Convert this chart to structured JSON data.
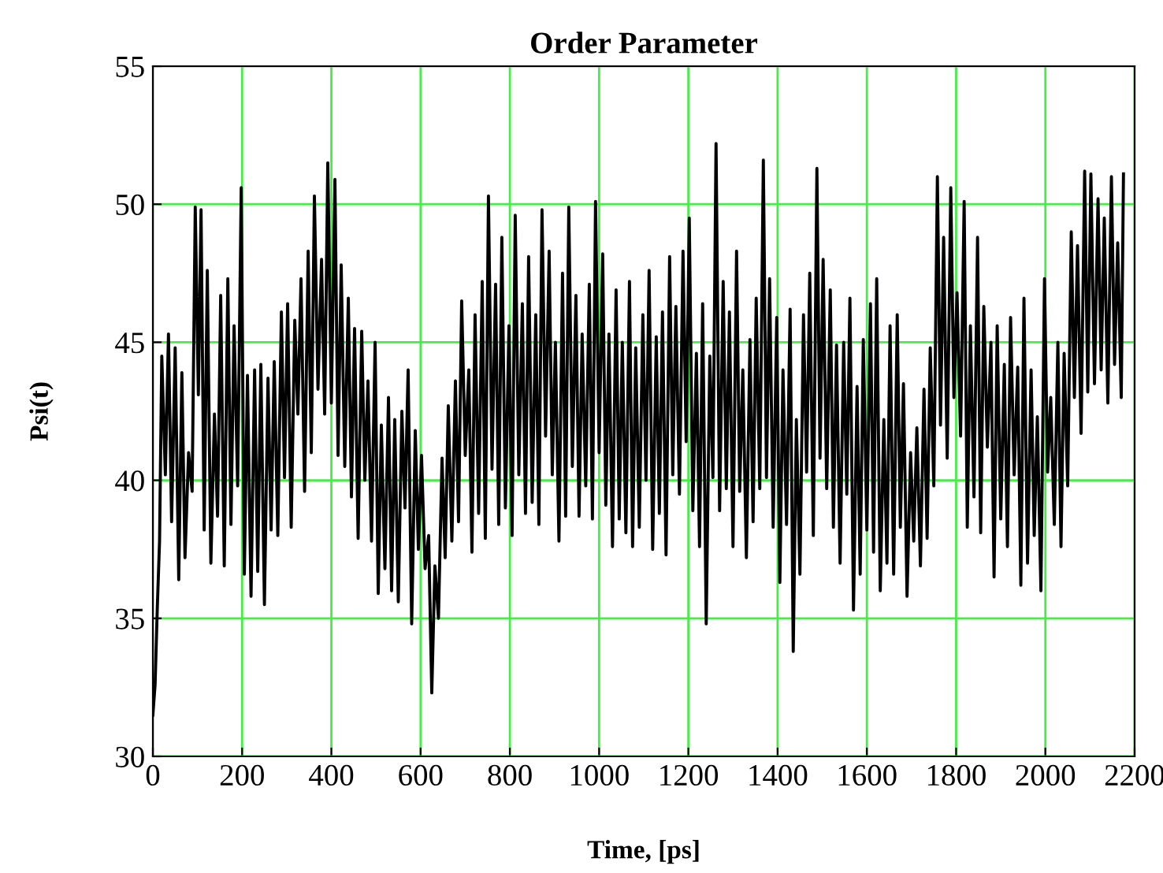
{
  "chart_data": {
    "type": "line",
    "title": "Order Parameter",
    "xlabel": "Time, [ps]",
    "ylabel": "Psi(t)",
    "x": [
      0,
      5,
      10,
      15,
      20,
      28,
      35,
      42,
      50,
      58,
      65,
      72,
      80,
      88,
      95,
      102,
      108,
      115,
      122,
      130,
      138,
      145,
      152,
      160,
      168,
      175,
      182,
      190,
      198,
      205,
      212,
      220,
      228,
      235,
      242,
      250,
      258,
      265,
      272,
      280,
      288,
      295,
      302,
      310,
      318,
      325,
      332,
      340,
      348,
      355,
      362,
      370,
      378,
      385,
      392,
      400,
      408,
      415,
      422,
      430,
      438,
      445,
      452,
      460,
      468,
      475,
      482,
      490,
      498,
      505,
      512,
      520,
      528,
      535,
      542,
      550,
      558,
      565,
      572,
      580,
      588,
      595,
      602,
      610,
      618,
      625,
      632,
      640,
      648,
      655,
      662,
      670,
      678,
      685,
      692,
      700,
      708,
      715,
      722,
      730,
      738,
      745,
      752,
      760,
      768,
      775,
      782,
      790,
      798,
      805,
      812,
      820,
      828,
      835,
      842,
      850,
      858,
      865,
      872,
      880,
      888,
      895,
      902,
      910,
      918,
      925,
      932,
      940,
      948,
      955,
      962,
      970,
      978,
      985,
      992,
      1000,
      1008,
      1015,
      1022,
      1030,
      1038,
      1045,
      1052,
      1060,
      1068,
      1075,
      1082,
      1090,
      1098,
      1105,
      1112,
      1120,
      1128,
      1135,
      1142,
      1150,
      1158,
      1165,
      1172,
      1180,
      1188,
      1195,
      1202,
      1210,
      1218,
      1225,
      1232,
      1240,
      1248,
      1255,
      1262,
      1270,
      1278,
      1285,
      1292,
      1300,
      1308,
      1315,
      1322,
      1330,
      1338,
      1345,
      1352,
      1360,
      1368,
      1375,
      1382,
      1390,
      1398,
      1405,
      1412,
      1420,
      1428,
      1435,
      1442,
      1450,
      1458,
      1465,
      1472,
      1480,
      1488,
      1495,
      1502,
      1510,
      1518,
      1525,
      1532,
      1540,
      1548,
      1555,
      1562,
      1570,
      1578,
      1585,
      1592,
      1600,
      1608,
      1615,
      1622,
      1630,
      1638,
      1645,
      1652,
      1660,
      1668,
      1675,
      1682,
      1690,
      1698,
      1705,
      1712,
      1720,
      1728,
      1735,
      1742,
      1750,
      1758,
      1765,
      1772,
      1780,
      1788,
      1795,
      1802,
      1810,
      1818,
      1825,
      1832,
      1840,
      1848,
      1855,
      1862,
      1870,
      1878,
      1885,
      1892,
      1900,
      1908,
      1915,
      1922,
      1930,
      1938,
      1945,
      1952,
      1960,
      1968,
      1975,
      1982,
      1990,
      1998,
      2005,
      2012,
      2020,
      2028,
      2035,
      2042,
      2050,
      2058,
      2065,
      2072,
      2080,
      2088,
      2095,
      2102,
      2110,
      2118,
      2125,
      2132,
      2140,
      2148,
      2155,
      2162,
      2170,
      2175
    ],
    "values": [
      31.5,
      32.6,
      35.4,
      37.8,
      44.5,
      40.2,
      45.3,
      38.5,
      44.8,
      36.4,
      43.9,
      37.2,
      41.0,
      39.6,
      49.9,
      43.1,
      49.8,
      38.2,
      47.6,
      37.0,
      42.4,
      38.7,
      46.7,
      36.9,
      47.3,
      38.4,
      45.6,
      39.8,
      50.6,
      36.6,
      43.8,
      35.8,
      44.0,
      36.7,
      44.2,
      35.5,
      43.7,
      38.2,
      44.3,
      38.0,
      46.1,
      40.1,
      46.4,
      38.3,
      45.8,
      42.4,
      47.3,
      39.6,
      48.3,
      41.0,
      50.3,
      43.3,
      48.0,
      42.4,
      51.5,
      42.8,
      50.9,
      40.9,
      47.8,
      40.5,
      46.6,
      39.4,
      45.5,
      37.9,
      45.4,
      40.0,
      43.6,
      37.8,
      45.0,
      35.9,
      42.0,
      36.8,
      43.0,
      36.0,
      42.2,
      35.6,
      42.5,
      39.0,
      44.0,
      34.8,
      41.8,
      37.5,
      40.9,
      36.8,
      38.0,
      32.3,
      36.9,
      35.0,
      40.8,
      37.2,
      42.7,
      37.8,
      43.6,
      38.5,
      46.5,
      40.9,
      44.0,
      37.4,
      46.0,
      38.8,
      47.2,
      37.9,
      50.3,
      40.4,
      47.1,
      38.4,
      48.8,
      39.0,
      45.6,
      38.0,
      49.6,
      40.2,
      46.4,
      38.8,
      48.1,
      39.2,
      46.0,
      38.4,
      49.8,
      41.6,
      48.3,
      40.2,
      45.0,
      37.8,
      47.5,
      38.7,
      49.9,
      40.5,
      46.7,
      38.7,
      45.3,
      39.8,
      47.1,
      38.6,
      50.1,
      41.0,
      48.2,
      39.1,
      45.3,
      37.6,
      46.9,
      38.6,
      45.0,
      38.1,
      47.2,
      37.6,
      44.8,
      38.3,
      46.0,
      40.0,
      47.6,
      37.5,
      45.2,
      38.8,
      46.1,
      37.3,
      48.1,
      40.2,
      46.3,
      39.5,
      48.3,
      41.4,
      49.5,
      38.9,
      44.6,
      37.6,
      46.4,
      34.8,
      44.5,
      40.1,
      52.2,
      38.9,
      47.2,
      39.7,
      46.1,
      37.6,
      48.3,
      39.6,
      44.0,
      37.2,
      45.1,
      38.5,
      46.6,
      39.7,
      51.6,
      40.1,
      47.3,
      38.3,
      45.9,
      36.3,
      44.0,
      38.4,
      46.2,
      33.8,
      42.2,
      36.6,
      46.0,
      40.3,
      47.5,
      38.0,
      51.3,
      40.8,
      48.0,
      39.7,
      46.9,
      38.3,
      44.9,
      37.0,
      45.0,
      39.5,
      46.6,
      35.3,
      43.4,
      36.6,
      45.1,
      38.2,
      46.4,
      37.4,
      47.3,
      36.0,
      42.2,
      37.0,
      45.6,
      36.6,
      46.0,
      38.3,
      43.5,
      35.8,
      41.0,
      37.8,
      41.9,
      36.9,
      43.3,
      37.9,
      44.8,
      39.8,
      51.0,
      42.0,
      48.8,
      40.8,
      50.6,
      43.0,
      46.8,
      41.6,
      50.1,
      38.3,
      45.6,
      39.4,
      48.8,
      38.1,
      46.3,
      41.2,
      45.0,
      36.5,
      45.6,
      38.6,
      44.2,
      37.6,
      45.9,
      40.2,
      44.1,
      36.2,
      46.6,
      37.0,
      44.0,
      38.0,
      42.3,
      36.0,
      47.3,
      40.3,
      43.0,
      38.4,
      45.0,
      37.6,
      44.6,
      39.8,
      49.0,
      43.0,
      48.5,
      41.7,
      51.2,
      43.2,
      51.1,
      43.5,
      50.2,
      44.0,
      49.5,
      42.8,
      51.0,
      44.2,
      48.6,
      43.0,
      51.1
    ],
    "color": "#000000",
    "xlim": [
      0,
      2200
    ],
    "xticks": [
      0,
      200,
      400,
      600,
      800,
      1000,
      1200,
      1400,
      1600,
      1800,
      2000,
      2200
    ],
    "ylim": [
      30,
      55
    ],
    "yticks": [
      30,
      35,
      40,
      45,
      50,
      55
    ],
    "grid": true
  }
}
